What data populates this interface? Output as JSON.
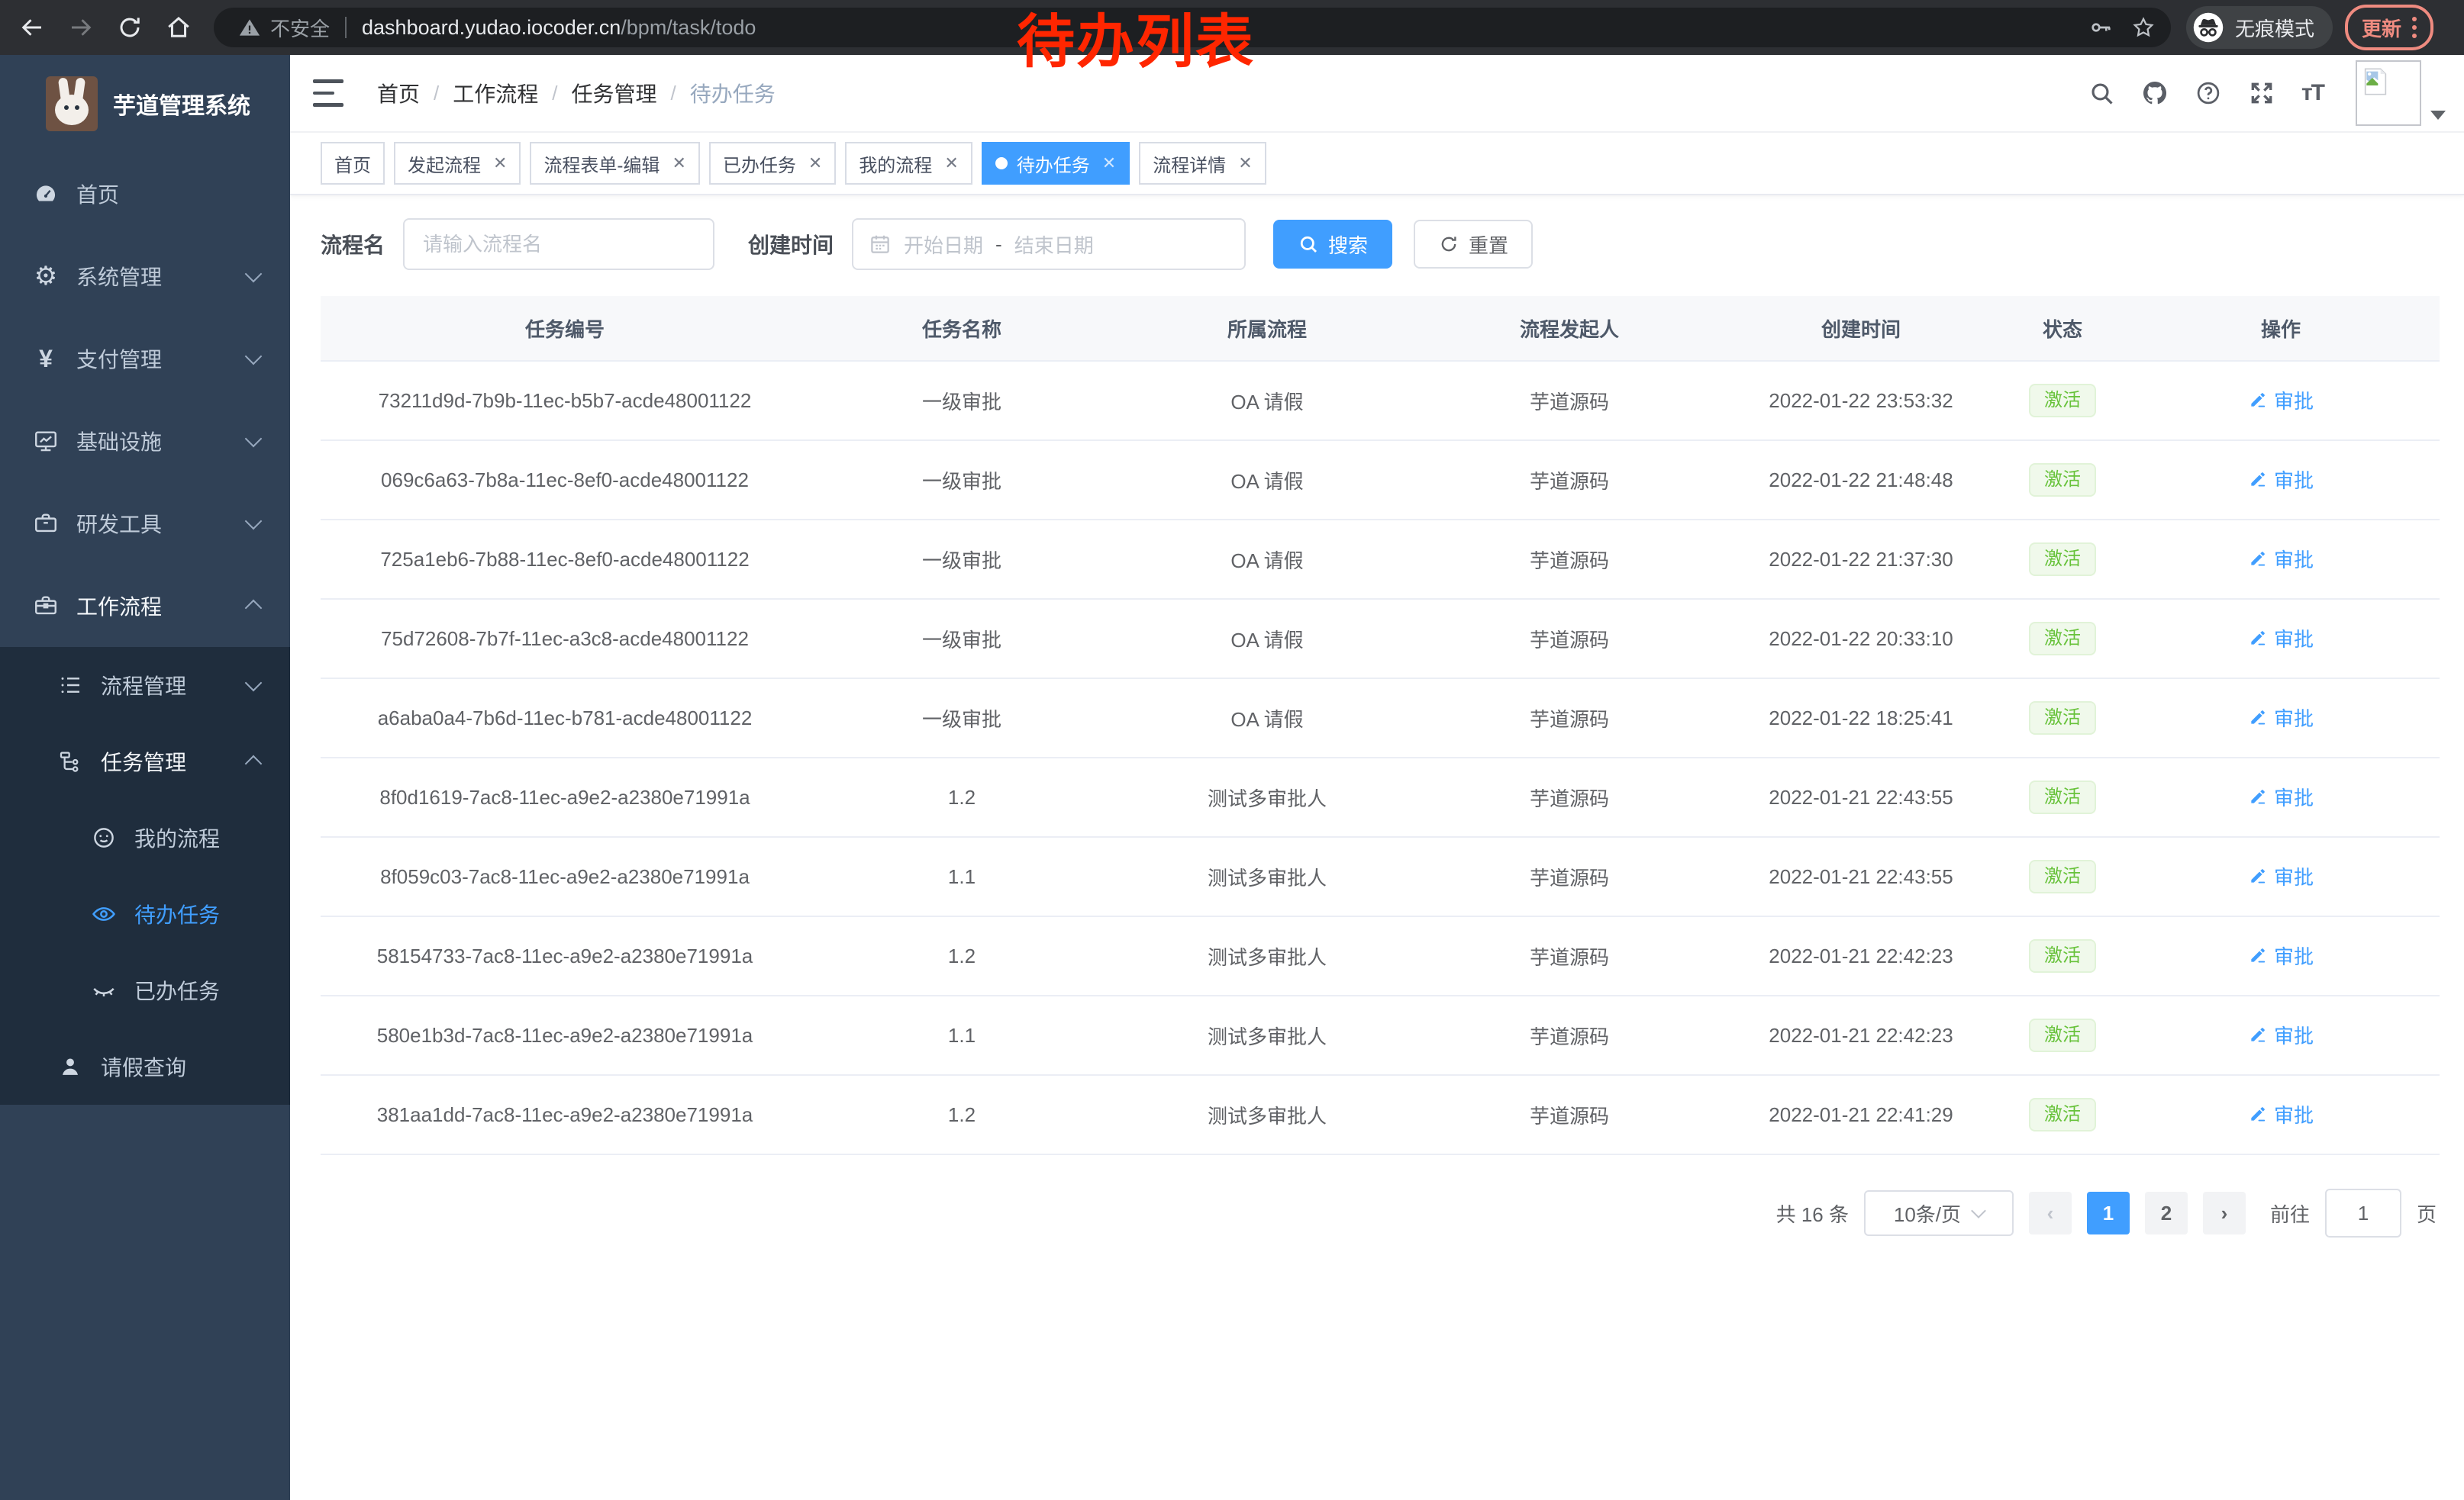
{
  "browser": {
    "security_label": "不安全",
    "url_host": "dashboard.yudao.iocoder.cn",
    "url_path": "/bpm/task/todo",
    "incognito_label": "无痕模式",
    "update_label": "更新"
  },
  "annotation": {
    "text": "待办列表",
    "color": "#ff2600"
  },
  "sidebar": {
    "title": "芋道管理系统",
    "items": [
      {
        "name": "home",
        "icon": "gauge",
        "label": "首页",
        "level": 0,
        "chevron": ""
      },
      {
        "name": "system",
        "icon": "gear",
        "label": "系统管理",
        "level": 0,
        "chevron": "down"
      },
      {
        "name": "payment",
        "icon": "yen",
        "label": "支付管理",
        "level": 0,
        "chevron": "down"
      },
      {
        "name": "infra",
        "icon": "monitor",
        "label": "基础设施",
        "level": 0,
        "chevron": "down"
      },
      {
        "name": "devtools",
        "icon": "toolbox",
        "label": "研发工具",
        "level": 0,
        "chevron": "down"
      },
      {
        "name": "workflow",
        "icon": "briefcase",
        "label": "工作流程",
        "level": 0,
        "chevron": "up",
        "bright": true
      }
    ],
    "submenu": [
      {
        "name": "process-mgmt",
        "icon": "list",
        "label": "流程管理",
        "level": 1,
        "chevron": "down"
      },
      {
        "name": "task-mgmt",
        "icon": "tree",
        "label": "任务管理",
        "level": 1,
        "chevron": "up",
        "bright": true
      },
      {
        "name": "my-process",
        "icon": "face",
        "label": "我的流程",
        "level": 2,
        "chevron": ""
      },
      {
        "name": "todo-tasks",
        "icon": "eye",
        "label": "待办任务",
        "level": 2,
        "chevron": "",
        "selected": true
      },
      {
        "name": "done-tasks",
        "icon": "eye-closed",
        "label": "已办任务",
        "level": 2,
        "chevron": ""
      },
      {
        "name": "leave-query",
        "icon": "user",
        "label": "请假查询",
        "level": 1,
        "chevron": ""
      }
    ]
  },
  "header": {
    "breadcrumbs": [
      "首页",
      "工作流程",
      "任务管理",
      "待办任务"
    ],
    "icons": [
      "search",
      "github",
      "help",
      "fullscreen",
      "font-size"
    ]
  },
  "tabs": [
    {
      "label": "首页",
      "closable": false,
      "active": false
    },
    {
      "label": "发起流程",
      "closable": true,
      "active": false
    },
    {
      "label": "流程表单-编辑",
      "closable": true,
      "active": false
    },
    {
      "label": "已办任务",
      "closable": true,
      "active": false
    },
    {
      "label": "我的流程",
      "closable": true,
      "active": false
    },
    {
      "label": "待办任务",
      "closable": true,
      "active": true
    },
    {
      "label": "流程详情",
      "closable": true,
      "active": false
    }
  ],
  "filters": {
    "process_name_label": "流程名",
    "process_name_placeholder": "请输入流程名",
    "create_time_label": "创建时间",
    "start_placeholder": "开始日期",
    "range_separator": "-",
    "end_placeholder": "结束日期",
    "search_label": "搜索",
    "reset_label": "重置"
  },
  "table": {
    "columns": [
      "任务编号",
      "任务名称",
      "所属流程",
      "流程发起人",
      "创建时间",
      "状态",
      "操作"
    ],
    "rows": [
      {
        "id": "73211d9d-7b9b-11ec-b5b7-acde48001122",
        "name": "一级审批",
        "process": "OA 请假",
        "initiator": "芋道源码",
        "created": "2022-01-22 23:53:32",
        "status": "激活",
        "action": "审批"
      },
      {
        "id": "069c6a63-7b8a-11ec-8ef0-acde48001122",
        "name": "一级审批",
        "process": "OA 请假",
        "initiator": "芋道源码",
        "created": "2022-01-22 21:48:48",
        "status": "激活",
        "action": "审批"
      },
      {
        "id": "725a1eb6-7b88-11ec-8ef0-acde48001122",
        "name": "一级审批",
        "process": "OA 请假",
        "initiator": "芋道源码",
        "created": "2022-01-22 21:37:30",
        "status": "激活",
        "action": "审批"
      },
      {
        "id": "75d72608-7b7f-11ec-a3c8-acde48001122",
        "name": "一级审批",
        "process": "OA 请假",
        "initiator": "芋道源码",
        "created": "2022-01-22 20:33:10",
        "status": "激活",
        "action": "审批"
      },
      {
        "id": "a6aba0a4-7b6d-11ec-b781-acde48001122",
        "name": "一级审批",
        "process": "OA 请假",
        "initiator": "芋道源码",
        "created": "2022-01-22 18:25:41",
        "status": "激活",
        "action": "审批"
      },
      {
        "id": "8f0d1619-7ac8-11ec-a9e2-a2380e71991a",
        "name": "1.2",
        "process": "测试多审批人",
        "initiator": "芋道源码",
        "created": "2022-01-21 22:43:55",
        "status": "激活",
        "action": "审批"
      },
      {
        "id": "8f059c03-7ac8-11ec-a9e2-a2380e71991a",
        "name": "1.1",
        "process": "测试多审批人",
        "initiator": "芋道源码",
        "created": "2022-01-21 22:43:55",
        "status": "激活",
        "action": "审批"
      },
      {
        "id": "58154733-7ac8-11ec-a9e2-a2380e71991a",
        "name": "1.2",
        "process": "测试多审批人",
        "initiator": "芋道源码",
        "created": "2022-01-21 22:42:23",
        "status": "激活",
        "action": "审批"
      },
      {
        "id": "580e1b3d-7ac8-11ec-a9e2-a2380e71991a",
        "name": "1.1",
        "process": "测试多审批人",
        "initiator": "芋道源码",
        "created": "2022-01-21 22:42:23",
        "status": "激活",
        "action": "审批"
      },
      {
        "id": "381aa1dd-7ac8-11ec-a9e2-a2380e71991a",
        "name": "1.2",
        "process": "测试多审批人",
        "initiator": "芋道源码",
        "created": "2022-01-21 22:41:29",
        "status": "激活",
        "action": "审批"
      }
    ]
  },
  "pagination": {
    "total": "共 16 条",
    "page_size": "10条/页",
    "pages": [
      "1",
      "2"
    ],
    "active_page": "1",
    "goto_label": "前往",
    "goto_value": "1",
    "page_unit": "页"
  },
  "colors": {
    "accent": "#409eff",
    "success": "#67c23a",
    "sidebar_bg": "#304156",
    "submenu_bg": "#1f2d3d",
    "annotation_red": "#ff2600"
  }
}
